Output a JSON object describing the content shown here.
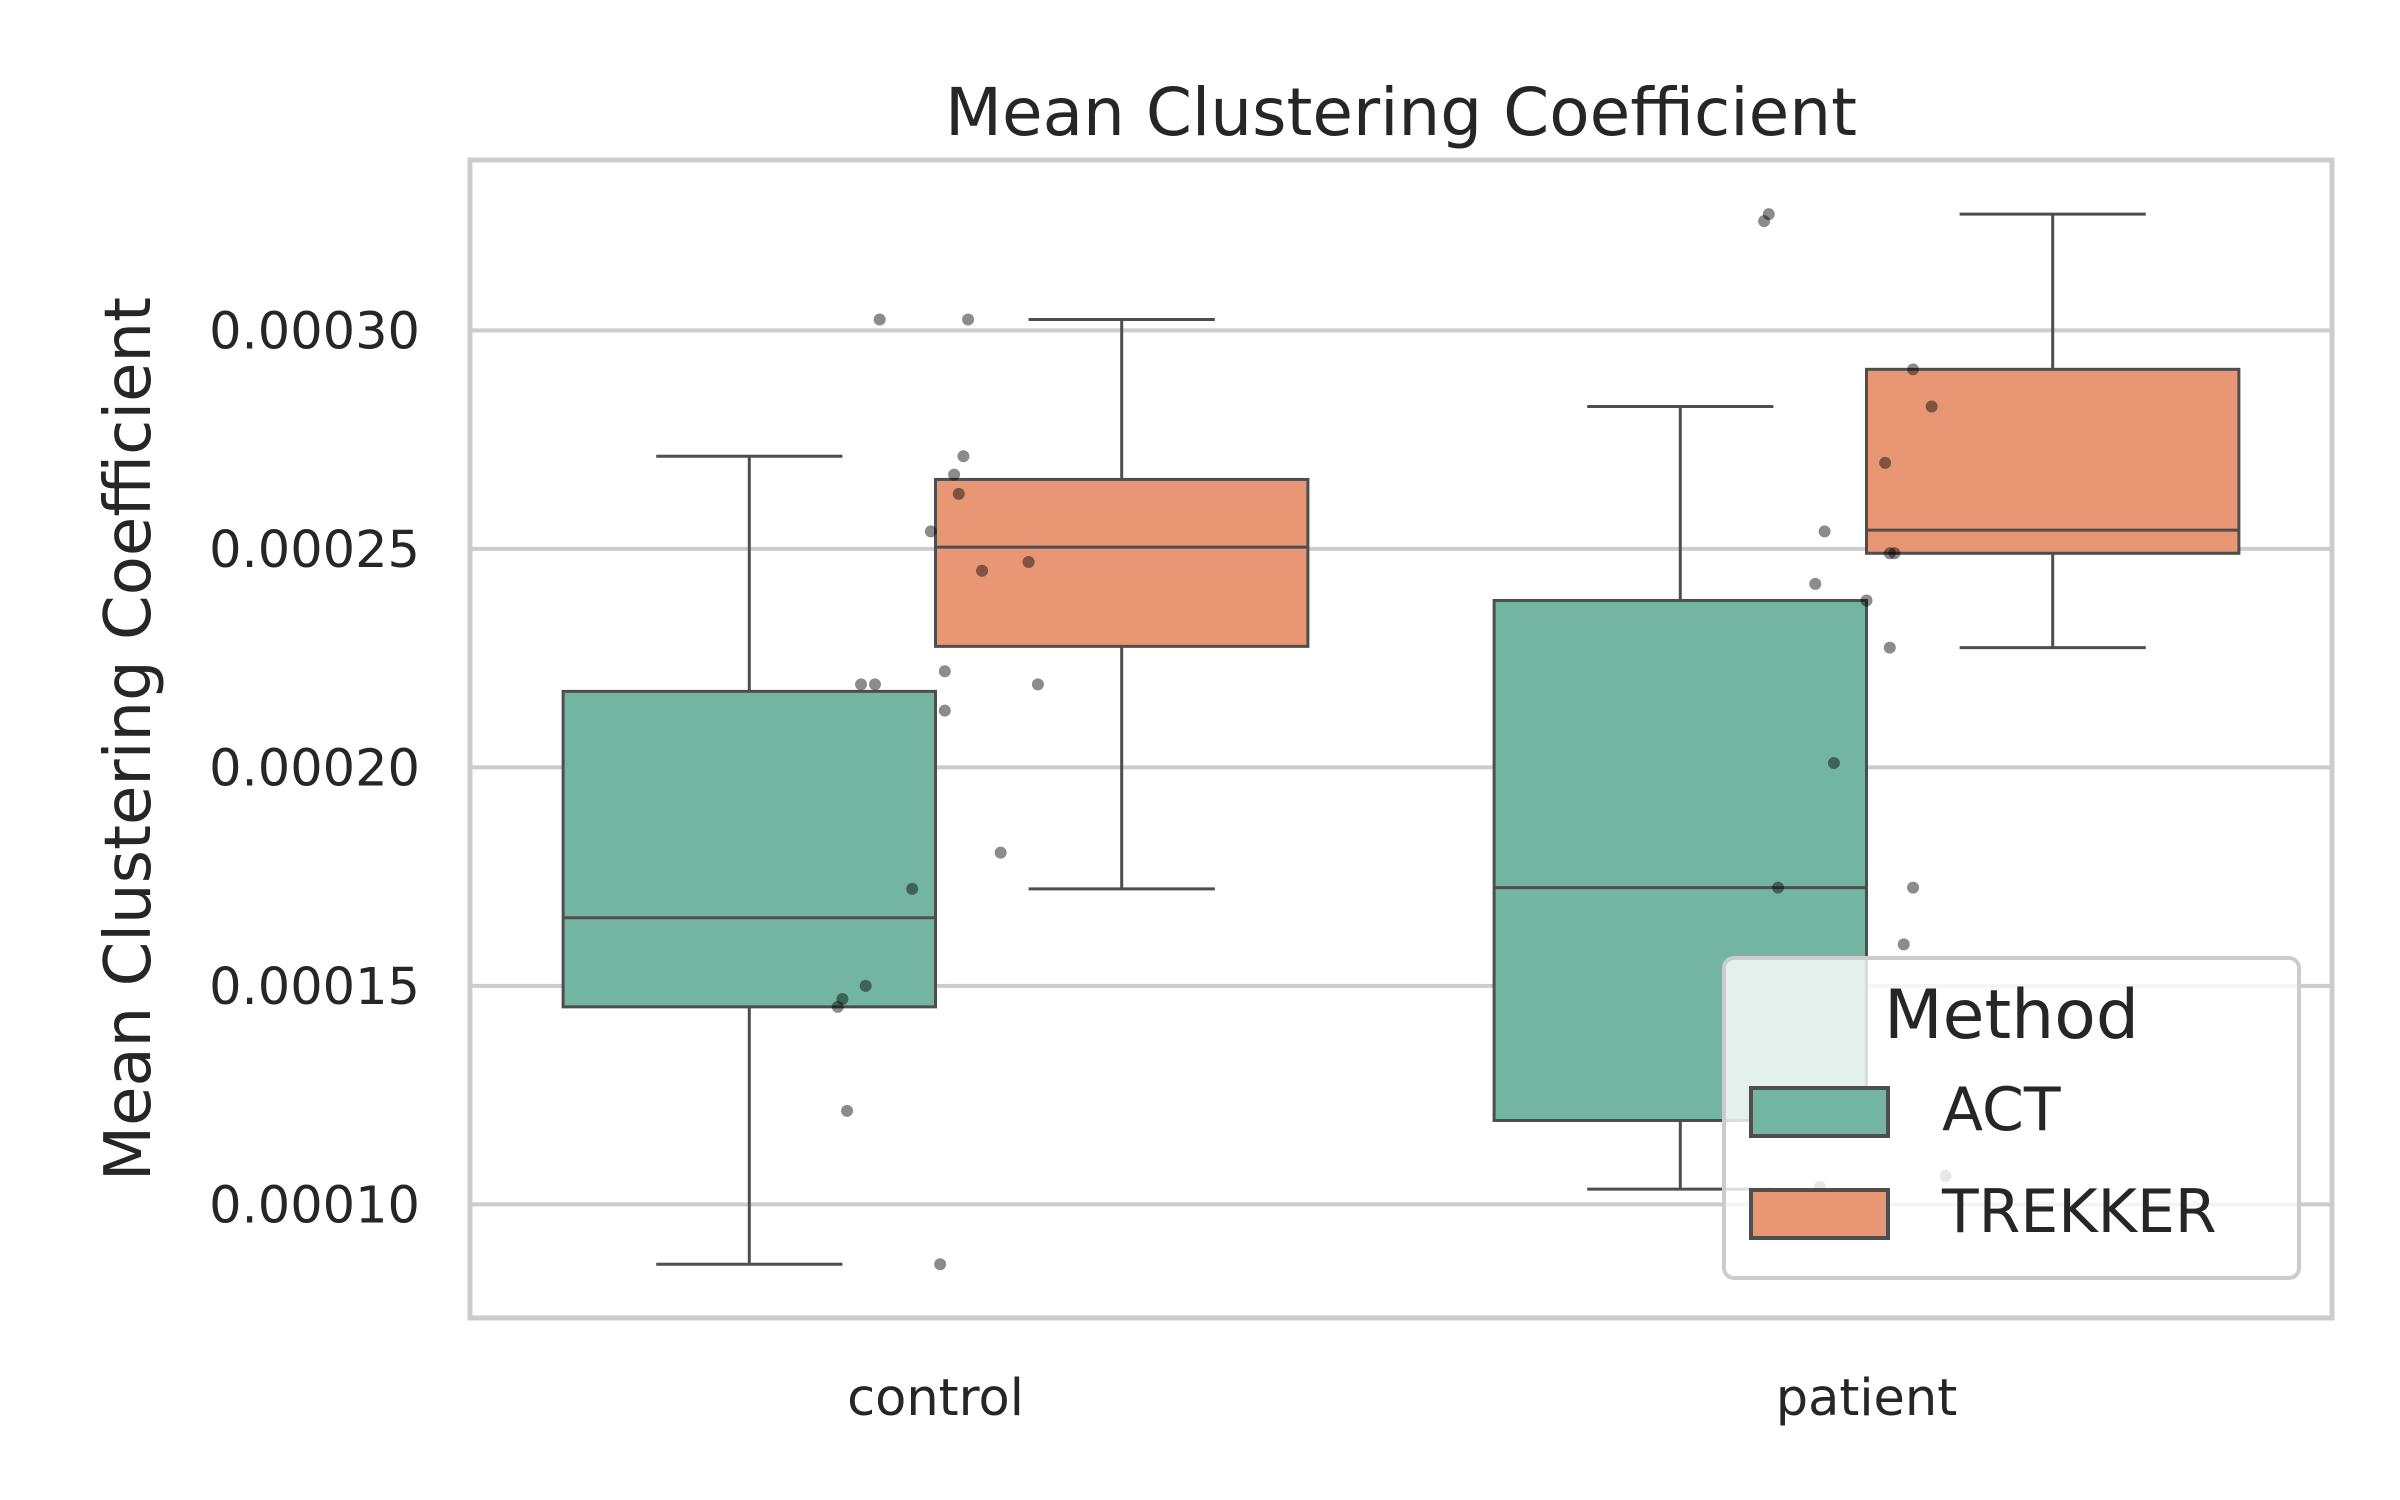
{
  "chart_data": {
    "type": "box",
    "title": "Mean Clustering Coefficient",
    "xlabel": "",
    "ylabel": "Mean Clustering Coefficient",
    "ylim": [
      7.4e-05,
      0.000339
    ],
    "yticks": [
      0.0001,
      0.00015,
      0.0002,
      0.00025,
      0.0003
    ],
    "ytick_labels": [
      "0.00010",
      "0.00015",
      "0.00020",
      "0.00025",
      "0.00030"
    ],
    "categories": [
      "control",
      "patient"
    ],
    "grid": true,
    "legend": {
      "title": "Method",
      "position": "lower-right"
    },
    "series": [
      {
        "name": "ACT",
        "color": "#72b6a1",
        "boxes": [
          {
            "whislo": 8.63e-05,
            "q1": 0.0001452,
            "med": 0.0001656,
            "q3": 0.0002174,
            "whishi": 0.0002712
          },
          {
            "whislo": 0.0001035,
            "q1": 0.0001192,
            "med": 0.0001725,
            "q3": 0.0002382,
            "whishi": 0.0002826
          }
        ]
      },
      {
        "name": "TREKKER",
        "color": "#e99675",
        "boxes": [
          {
            "whislo": 0.0001722,
            "q1": 0.0002277,
            "med": 0.0002504,
            "q3": 0.0002659,
            "whishi": 0.0003025
          },
          {
            "whislo": 0.0002274,
            "q1": 0.000249,
            "med": 0.0002543,
            "q3": 0.0002911,
            "whishi": 0.0003266
          }
        ]
      }
    ],
    "points": [
      {
        "category": "control",
        "x_offset": -0.06,
        "y": 0.0003025
      },
      {
        "category": "control",
        "x_offset": 0.035,
        "y": 0.0003025
      },
      {
        "category": "control",
        "x_offset": 0.03,
        "y": 0.0002712
      },
      {
        "category": "control",
        "x_offset": 0.02,
        "y": 0.000267
      },
      {
        "category": "control",
        "x_offset": 0.025,
        "y": 0.0002626
      },
      {
        "category": "control",
        "x_offset": -0.005,
        "y": 0.000254
      },
      {
        "category": "control",
        "x_offset": 0.1,
        "y": 0.000247
      },
      {
        "category": "control",
        "x_offset": 0.05,
        "y": 0.000245
      },
      {
        "category": "control",
        "x_offset": 0.01,
        "y": 0.000222
      },
      {
        "category": "control",
        "x_offset": -0.08,
        "y": 0.000219
      },
      {
        "category": "control",
        "x_offset": -0.065,
        "y": 0.000219
      },
      {
        "category": "control",
        "x_offset": 0.11,
        "y": 0.000219
      },
      {
        "category": "control",
        "x_offset": 0.01,
        "y": 0.000213
      },
      {
        "category": "control",
        "x_offset": 0.07,
        "y": 0.0001805
      },
      {
        "category": "control",
        "x_offset": -0.025,
        "y": 0.0001722
      },
      {
        "category": "control",
        "x_offset": -0.075,
        "y": 0.00015
      },
      {
        "category": "control",
        "x_offset": -0.1,
        "y": 0.000147
      },
      {
        "category": "control",
        "x_offset": -0.105,
        "y": 0.0001452
      },
      {
        "category": "control",
        "x_offset": -0.095,
        "y": 0.0001214
      },
      {
        "category": "control",
        "x_offset": 0.005,
        "y": 8.63e-05
      },
      {
        "category": "patient",
        "x_offset": -0.105,
        "y": 0.0003266
      },
      {
        "category": "patient",
        "x_offset": -0.11,
        "y": 0.000325
      },
      {
        "category": "patient",
        "x_offset": 0.05,
        "y": 0.0002911
      },
      {
        "category": "patient",
        "x_offset": 0.07,
        "y": 0.0002826
      },
      {
        "category": "patient",
        "x_offset": 0.02,
        "y": 0.0002697
      },
      {
        "category": "patient",
        "x_offset": -0.045,
        "y": 0.000254
      },
      {
        "category": "patient",
        "x_offset": 0.03,
        "y": 0.000249
      },
      {
        "category": "patient",
        "x_offset": 0.025,
        "y": 0.000249
      },
      {
        "category": "patient",
        "x_offset": -0.055,
        "y": 0.000242
      },
      {
        "category": "patient",
        "x_offset": 0.0,
        "y": 0.0002382
      },
      {
        "category": "patient",
        "x_offset": 0.025,
        "y": 0.0002274
      },
      {
        "category": "patient",
        "x_offset": -0.035,
        "y": 0.000201
      },
      {
        "category": "patient",
        "x_offset": -0.095,
        "y": 0.0001725
      },
      {
        "category": "patient",
        "x_offset": 0.05,
        "y": 0.0001725
      },
      {
        "category": "patient",
        "x_offset": 0.04,
        "y": 0.0001595
      },
      {
        "category": "patient",
        "x_offset": -0.05,
        "y": 0.000104
      },
      {
        "category": "patient",
        "x_offset": 0.085,
        "y": 0.0001065
      }
    ]
  }
}
